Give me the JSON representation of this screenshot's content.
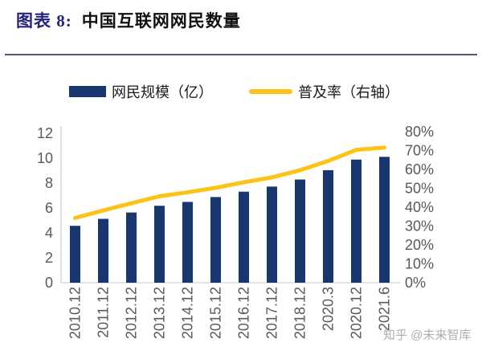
{
  "header": {
    "figure_label": "图表 8:",
    "figure_title": "中国互联网网民数量"
  },
  "legend": {
    "items": [
      {
        "label": "网民规模（亿）",
        "swatch": "bar-swatch"
      },
      {
        "label": "普及率（右轴）",
        "swatch": "line-swatch"
      }
    ]
  },
  "watermark": "知乎 @未来智库",
  "colors": {
    "bar": "#17376E",
    "line": "#FCC216",
    "axis_text": "#595959",
    "plot_border": "#D9D9D9",
    "title_accent": "#23237A",
    "title_text": "#111111",
    "divider": "#53537E",
    "watermark": "#ADADAD"
  },
  "chart_data": {
    "type": "bar+line",
    "title": "图表 8: 中国互联网网民数量",
    "categories": [
      "2010.12",
      "2011.12",
      "2012.12",
      "2013.12",
      "2014.12",
      "2015.12",
      "2016.12",
      "2017.12",
      "2018.12",
      "2020.3",
      "2020.12",
      "2021.6"
    ],
    "series": [
      {
        "name": "网民规模（亿）",
        "type": "bar",
        "axis": "left",
        "values": [
          4.57,
          5.13,
          5.64,
          6.18,
          6.49,
          6.88,
          7.31,
          7.72,
          8.29,
          9.04,
          9.89,
          10.11
        ]
      },
      {
        "name": "普及率（右轴）",
        "type": "line",
        "axis": "right",
        "unit": "%",
        "values": [
          34.3,
          38.3,
          42.1,
          45.8,
          47.9,
          50.3,
          53.2,
          55.8,
          59.6,
          64.5,
          70.4,
          71.6
        ]
      }
    ],
    "left_axis": {
      "range": [
        0,
        12
      ],
      "ticks": [
        0,
        2,
        4,
        6,
        8,
        10,
        12
      ]
    },
    "right_axis": {
      "range": [
        0,
        80
      ],
      "ticks": [
        "0%",
        "10%",
        "20%",
        "30%",
        "40%",
        "50%",
        "60%",
        "70%",
        "80%"
      ]
    },
    "grid": false,
    "legend_position": "top"
  }
}
